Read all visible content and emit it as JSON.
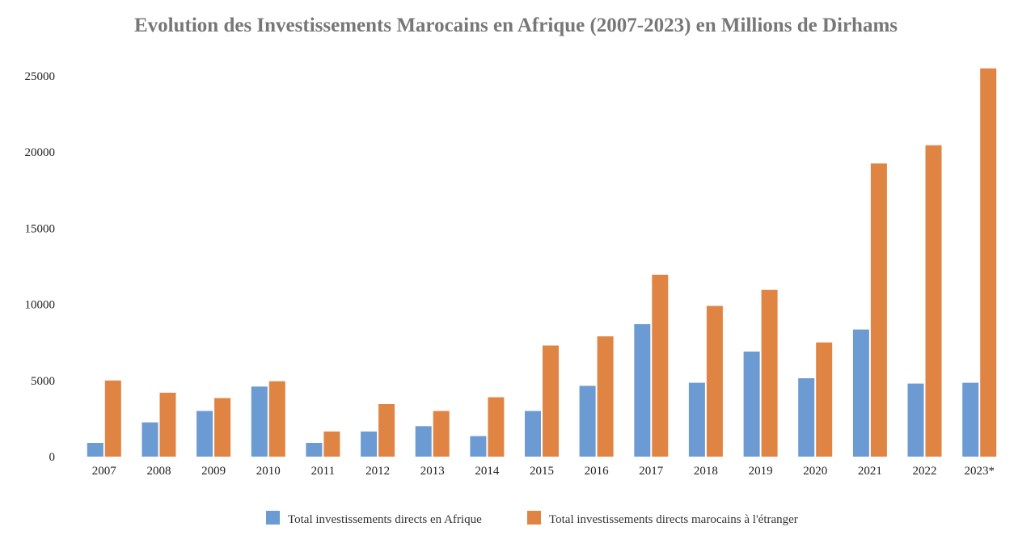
{
  "chart_data": {
    "type": "bar",
    "title": "Evolution des Investissements Marocains en Afrique (2007-2023) en Millions de Dirhams",
    "xlabel": "",
    "ylabel": "",
    "ylim": [
      0,
      25000
    ],
    "yticks": [
      0,
      5000,
      10000,
      15000,
      20000,
      25000
    ],
    "grid": false,
    "legend_position": "bottom-center",
    "categories": [
      "2007",
      "2008",
      "2009",
      "2010",
      "2011",
      "2012",
      "2013",
      "2014",
      "2015",
      "2016",
      "2017",
      "2018",
      "2019",
      "2020",
      "2021",
      "2022",
      "2023*"
    ],
    "series": [
      {
        "name": "Total investissements directs en Afrique",
        "color": "#6b9bd2",
        "values": [
          900,
          2250,
          3000,
          4600,
          900,
          1650,
          2000,
          1350,
          3000,
          4650,
          8700,
          4850,
          6900,
          5150,
          8350,
          4800,
          4850
        ]
      },
      {
        "name": "Total investissements directs marocains à l'étranger",
        "color": "#e08444",
        "values": [
          5000,
          4200,
          3850,
          4950,
          1650,
          3450,
          3000,
          3900,
          7300,
          7900,
          11950,
          9900,
          10950,
          7500,
          19250,
          20450,
          25500
        ]
      }
    ]
  }
}
